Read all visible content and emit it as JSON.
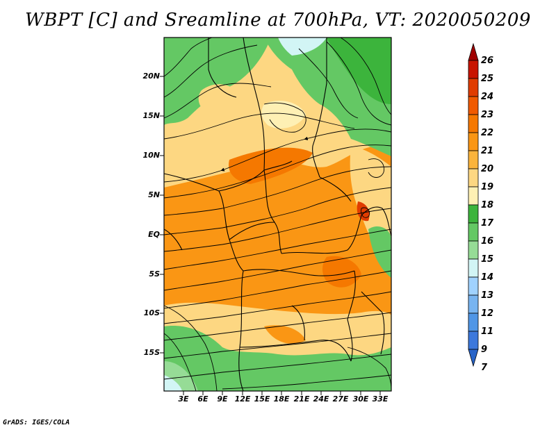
{
  "title": "WBPT [C] and Sreamline at 700hPa, VT: 2020050209",
  "y_axis_labels": [
    "20N",
    "15N",
    "10N",
    "5N",
    "EQ",
    "5S",
    "10S",
    "15S"
  ],
  "x_axis_labels": [
    "3E",
    "6E",
    "9E",
    "12E",
    "15E",
    "18E",
    "21E",
    "24E",
    "27E",
    "30E",
    "33E"
  ],
  "colorbar": {
    "labels": [
      "26",
      "25",
      "24",
      "23",
      "22",
      "21",
      "20",
      "19",
      "18",
      "17",
      "16",
      "15",
      "14",
      "13",
      "12",
      "11",
      "9",
      "7"
    ],
    "colors": [
      "#a00000",
      "#c81400",
      "#e03c00",
      "#f05a00",
      "#f57800",
      "#fa9614",
      "#fbb43c",
      "#fdd782",
      "#fef0b4",
      "#3cb43c",
      "#64c864",
      "#96dc96",
      "#d2f5f5",
      "#a0d2ff",
      "#78b4f0",
      "#5096e6",
      "#3c78dc",
      "#2864c8"
    ]
  },
  "credit": "GrADS: IGES/COLA"
}
